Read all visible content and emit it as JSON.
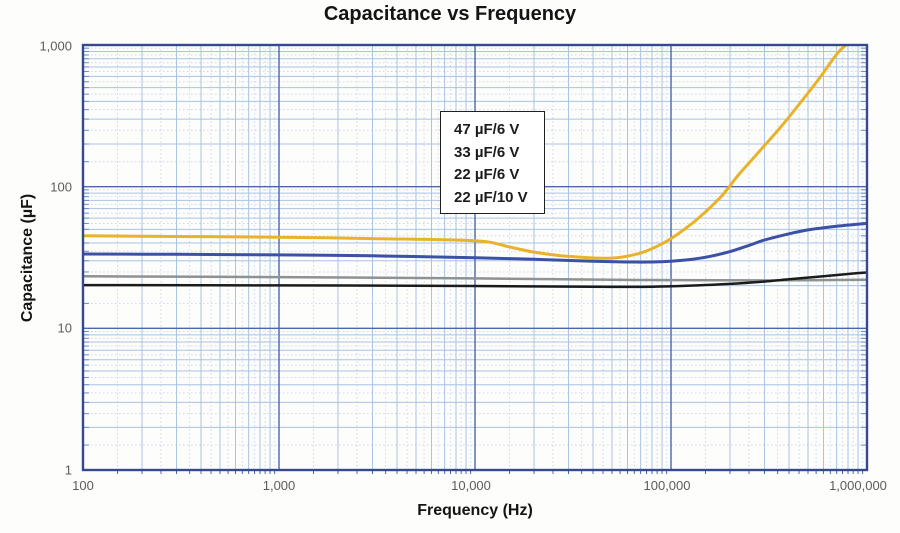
{
  "title": "Capacitance vs Frequency",
  "x_axis": {
    "label": "Frequency (Hz)",
    "scale": "log",
    "ticks": [
      {
        "value": 100,
        "label": "100"
      },
      {
        "value": 1000,
        "label": "1,000"
      },
      {
        "value": 10000,
        "label": "10,000"
      },
      {
        "value": 100000,
        "label": "100,000"
      },
      {
        "value": 1000000,
        "label": "1,000,000"
      }
    ]
  },
  "y_axis": {
    "label": "Capacitance (µF)",
    "scale": "log",
    "ticks": [
      {
        "value": 1000,
        "label": "1,000"
      },
      {
        "value": 100,
        "label": "100"
      },
      {
        "value": 10,
        "label": "10"
      },
      {
        "value": 1,
        "label": "1"
      }
    ]
  },
  "legend": {
    "items": [
      "47 µF/6 V",
      "33 µF/6 V",
      "22 µF/6 V",
      "22 µF/10 V"
    ]
  },
  "colors": {
    "grid_decade": "#4b66ab",
    "grid_minor": "#a9c3e5",
    "grid_sub": "#c9d9ef",
    "border": "#35498e",
    "tick_mark": "#6f8dc6",
    "title_text": "#141414",
    "tick_text": "#5c5c5c"
  },
  "chart_data": {
    "type": "line",
    "title": "Capacitance vs Frequency",
    "xlabel": "Frequency (Hz)",
    "ylabel": "Capacitance (µF)",
    "x_scale": "log",
    "y_scale": "log",
    "xlim": [
      100,
      1000000
    ],
    "ylim": [
      1,
      1000
    ],
    "grid": true,
    "legend_position": "upper-center-box",
    "series": [
      {
        "name": "47 µF/6 V",
        "color": "#E9B22B",
        "points": [
          [
            100,
            45
          ],
          [
            300,
            44.5
          ],
          [
            1000,
            44
          ],
          [
            3000,
            43
          ],
          [
            10000,
            41.5
          ],
          [
            15000,
            37.5
          ],
          [
            20000,
            34.5
          ],
          [
            30000,
            32.2
          ],
          [
            50000,
            31.3
          ],
          [
            70000,
            34
          ],
          [
            90000,
            39.5
          ],
          [
            110000,
            47
          ],
          [
            140000,
            61
          ],
          [
            180000,
            85
          ],
          [
            220000,
            120
          ],
          [
            280000,
            175
          ],
          [
            360000,
            260
          ],
          [
            450000,
            380
          ],
          [
            570000,
            580
          ],
          [
            700000,
            860
          ],
          [
            780000,
            1000
          ]
        ]
      },
      {
        "name": "33 µF/6 V",
        "color": "#3A51A5",
        "points": [
          [
            100,
            33.5
          ],
          [
            300,
            33.3
          ],
          [
            1000,
            33
          ],
          [
            3000,
            32.5
          ],
          [
            10000,
            31.5
          ],
          [
            20000,
            30.7
          ],
          [
            40000,
            29.8
          ],
          [
            60000,
            29.4
          ],
          [
            80000,
            29.4
          ],
          [
            100000,
            29.8
          ],
          [
            130000,
            30.8
          ],
          [
            160000,
            32.3
          ],
          [
            200000,
            34.8
          ],
          [
            250000,
            38.5
          ],
          [
            300000,
            42
          ],
          [
            400000,
            46.5
          ],
          [
            500000,
            49.5
          ],
          [
            700000,
            52.5
          ],
          [
            1000000,
            55
          ]
        ]
      },
      {
        "name": "22 µF/6 V",
        "color": "#8F9193",
        "points": [
          [
            100,
            23.3
          ],
          [
            1000,
            23
          ],
          [
            10000,
            22.5
          ],
          [
            50000,
            22
          ],
          [
            100000,
            21.9
          ],
          [
            300000,
            21.8
          ],
          [
            600000,
            21.9
          ],
          [
            1000000,
            22
          ]
        ]
      },
      {
        "name": "22 µF/10 V",
        "color": "#1B1B1B",
        "points": [
          [
            100,
            20.2
          ],
          [
            1000,
            20.1
          ],
          [
            10000,
            19.9
          ],
          [
            50000,
            19.6
          ],
          [
            100000,
            19.8
          ],
          [
            200000,
            20.6
          ],
          [
            300000,
            21.4
          ],
          [
            400000,
            22.2
          ],
          [
            600000,
            23.3
          ],
          [
            800000,
            24.2
          ],
          [
            1000000,
            24.8
          ]
        ]
      }
    ]
  }
}
